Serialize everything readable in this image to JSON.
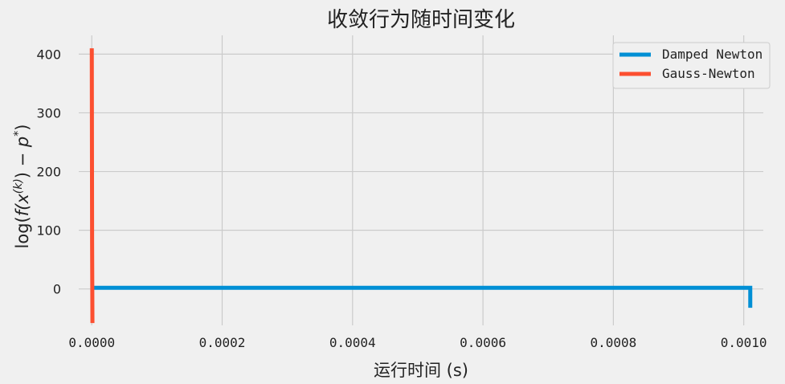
{
  "chart_data": {
    "type": "line",
    "title": "收敛行为随时间变化",
    "xlabel": "运行时间 (s)",
    "ylabel": "log(f(x(k)) − p*)",
    "ylabel_parts": {
      "pre": "log(",
      "f": "f",
      "x": "(x",
      "k": "(k)",
      "mid": ") − ",
      "p": "p",
      "star": "*",
      "post": ")"
    },
    "xlim": [
      -2e-05,
      0.00103
    ],
    "ylim": [
      -62,
      432
    ],
    "x_ticks": [
      0.0,
      0.0002,
      0.0004,
      0.0006,
      0.0008,
      0.001
    ],
    "x_tick_labels": [
      "0.0000",
      "0.0002",
      "0.0004",
      "0.0006",
      "0.0008",
      "0.0010"
    ],
    "y_ticks": [
      0,
      100,
      200,
      300,
      400
    ],
    "y_tick_labels": [
      "0",
      "100",
      "200",
      "300",
      "400"
    ],
    "grid": true,
    "legend_position": "top-right",
    "series": [
      {
        "name": "Damped Newton",
        "color": "#008fd5",
        "x": [
          0.0,
          1e-05,
          0.0002,
          0.0005,
          0.0008,
          0.001,
          0.00101,
          0.00101
        ],
        "y": [
          2.0,
          2.0,
          2.0,
          2.0,
          2.0,
          2.0,
          2.0,
          -32.0
        ]
      },
      {
        "name": "Gauss-Newton",
        "color": "#fc4f30",
        "x": [
          0.0,
          5e-07,
          1e-06
        ],
        "y": [
          410.0,
          80.0,
          -58.0
        ]
      }
    ]
  }
}
